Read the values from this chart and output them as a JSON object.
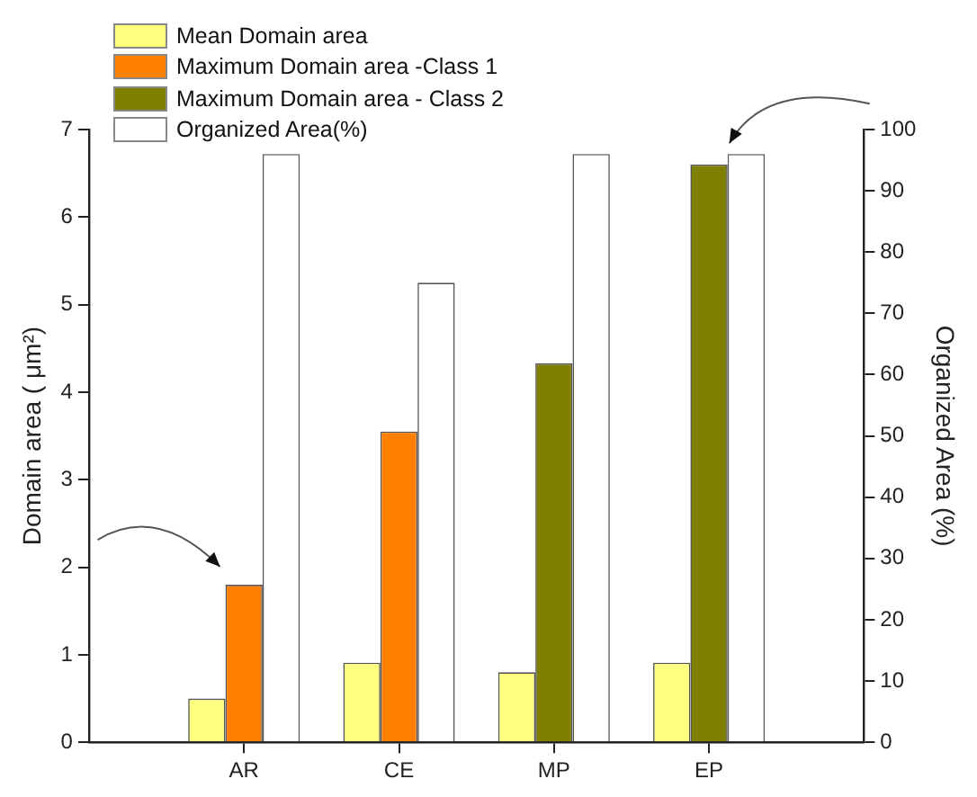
{
  "chart_data": {
    "type": "bar",
    "categories": [
      "AR",
      "CE",
      "MP",
      "EP"
    ],
    "series": [
      {
        "name": "Mean Domain area",
        "color": "#ffff80",
        "values": [
          0.5,
          0.91,
          0.8,
          0.91
        ]
      },
      {
        "name": "Maximum Domain area -Class 1",
        "color": "#ff8000",
        "values": [
          1.8,
          3.55,
          null,
          null
        ]
      },
      {
        "name": "Maximum Domain area - Class 2",
        "color": "#808000",
        "values": [
          null,
          null,
          4.33,
          6.6
        ]
      },
      {
        "name": "Organized Area(%)",
        "color": "#ffffff",
        "axis": "y2",
        "values": [
          96,
          75,
          96,
          96
        ]
      }
    ],
    "ylabel": "Domain area ( μm²)",
    "y2label": "Organized Area (%)",
    "ylim": [
      0,
      7
    ],
    "yticks": [
      0,
      1,
      2,
      3,
      4,
      5,
      6,
      7
    ],
    "y2lim": [
      0,
      100
    ],
    "y2ticks": [
      0,
      10,
      20,
      30,
      40,
      50,
      60,
      70,
      80,
      90,
      100
    ],
    "grid": false,
    "legend": "top left"
  }
}
